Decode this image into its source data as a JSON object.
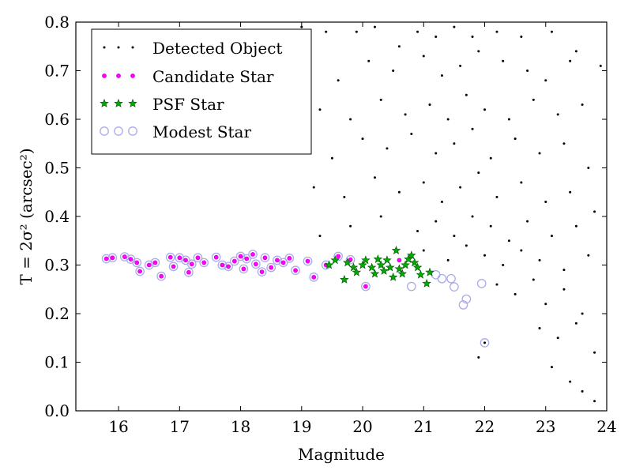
{
  "chart_data": {
    "type": "scatter",
    "xlabel": "Magnitude",
    "ylabel": "T = 2σ² (arcsec²)",
    "xlim": [
      15.3,
      24
    ],
    "ylim": [
      0,
      0.8
    ],
    "xticks": [
      "16",
      "17",
      "18",
      "19",
      "20",
      "21",
      "22",
      "23",
      "24"
    ],
    "yticks": [
      "0.0",
      "0.1",
      "0.2",
      "0.3",
      "0.4",
      "0.5",
      "0.6",
      "0.7",
      "0.8"
    ],
    "legend_placement": "top-left",
    "legend": [
      {
        "label": "Detected Object",
        "marker": "dot",
        "color": "#000000"
      },
      {
        "label": "Candidate Star",
        "marker": "small-circle",
        "color": "#ff00ff"
      },
      {
        "label": "PSF Star",
        "marker": "star",
        "color": "#00aa00"
      },
      {
        "label": "Modest Star",
        "marker": "hollow-circle",
        "color": "#aaaaee"
      }
    ],
    "series": [
      {
        "name": "Detected Object",
        "points": [
          [
            19.0,
            0.79
          ],
          [
            19.4,
            0.78
          ],
          [
            19.9,
            0.78
          ],
          [
            20.2,
            0.79
          ],
          [
            20.6,
            0.75
          ],
          [
            20.9,
            0.78
          ],
          [
            21.2,
            0.77
          ],
          [
            21.5,
            0.79
          ],
          [
            21.8,
            0.77
          ],
          [
            22.2,
            0.78
          ],
          [
            22.6,
            0.77
          ],
          [
            23.1,
            0.78
          ],
          [
            23.5,
            0.74
          ],
          [
            23.9,
            0.71
          ],
          [
            19.1,
            0.7
          ],
          [
            19.6,
            0.68
          ],
          [
            20.1,
            0.72
          ],
          [
            20.5,
            0.7
          ],
          [
            21.0,
            0.73
          ],
          [
            21.3,
            0.69
          ],
          [
            21.6,
            0.71
          ],
          [
            21.9,
            0.74
          ],
          [
            22.3,
            0.72
          ],
          [
            22.7,
            0.7
          ],
          [
            23.0,
            0.68
          ],
          [
            23.4,
            0.72
          ],
          [
            19.3,
            0.62
          ],
          [
            19.8,
            0.6
          ],
          [
            20.3,
            0.64
          ],
          [
            20.7,
            0.61
          ],
          [
            21.1,
            0.63
          ],
          [
            21.4,
            0.6
          ],
          [
            21.7,
            0.65
          ],
          [
            22.0,
            0.62
          ],
          [
            22.4,
            0.6
          ],
          [
            22.8,
            0.64
          ],
          [
            23.2,
            0.61
          ],
          [
            23.6,
            0.63
          ],
          [
            18.9,
            0.55
          ],
          [
            19.5,
            0.52
          ],
          [
            20.0,
            0.56
          ],
          [
            20.4,
            0.54
          ],
          [
            20.8,
            0.57
          ],
          [
            21.2,
            0.53
          ],
          [
            21.5,
            0.55
          ],
          [
            21.8,
            0.58
          ],
          [
            22.1,
            0.52
          ],
          [
            22.5,
            0.56
          ],
          [
            22.9,
            0.53
          ],
          [
            23.3,
            0.55
          ],
          [
            23.7,
            0.5
          ],
          [
            19.2,
            0.46
          ],
          [
            19.7,
            0.44
          ],
          [
            20.2,
            0.48
          ],
          [
            20.6,
            0.45
          ],
          [
            21.0,
            0.47
          ],
          [
            21.3,
            0.43
          ],
          [
            21.6,
            0.46
          ],
          [
            21.9,
            0.49
          ],
          [
            22.2,
            0.44
          ],
          [
            22.6,
            0.47
          ],
          [
            23.0,
            0.43
          ],
          [
            23.4,
            0.45
          ],
          [
            23.8,
            0.41
          ],
          [
            19.8,
            0.38
          ],
          [
            20.3,
            0.4
          ],
          [
            20.9,
            0.37
          ],
          [
            21.2,
            0.39
          ],
          [
            21.5,
            0.36
          ],
          [
            21.8,
            0.4
          ],
          [
            22.1,
            0.38
          ],
          [
            22.4,
            0.35
          ],
          [
            22.7,
            0.39
          ],
          [
            23.1,
            0.36
          ],
          [
            23.5,
            0.38
          ],
          [
            21.0,
            0.33
          ],
          [
            21.4,
            0.31
          ],
          [
            21.7,
            0.34
          ],
          [
            22.0,
            0.32
          ],
          [
            22.3,
            0.3
          ],
          [
            22.6,
            0.33
          ],
          [
            22.9,
            0.31
          ],
          [
            23.3,
            0.29
          ],
          [
            23.7,
            0.32
          ],
          [
            22.2,
            0.26
          ],
          [
            22.5,
            0.24
          ],
          [
            22.8,
            0.27
          ],
          [
            23.0,
            0.22
          ],
          [
            23.3,
            0.25
          ],
          [
            23.6,
            0.2
          ],
          [
            22.9,
            0.17
          ],
          [
            23.2,
            0.15
          ],
          [
            23.5,
            0.18
          ],
          [
            23.8,
            0.12
          ],
          [
            23.1,
            0.09
          ],
          [
            23.4,
            0.06
          ],
          [
            23.6,
            0.04
          ],
          [
            23.8,
            0.02
          ],
          [
            19.3,
            0.36
          ],
          [
            18.8,
            0.54
          ],
          [
            22.0,
            0.14
          ],
          [
            21.9,
            0.11
          ]
        ]
      },
      {
        "name": "Candidate Star",
        "points": [
          [
            15.8,
            0.313
          ],
          [
            15.9,
            0.315
          ],
          [
            16.1,
            0.317
          ],
          [
            16.2,
            0.312
          ],
          [
            16.3,
            0.305
          ],
          [
            16.35,
            0.287
          ],
          [
            16.5,
            0.3
          ],
          [
            16.6,
            0.305
          ],
          [
            16.7,
            0.277
          ],
          [
            16.85,
            0.316
          ],
          [
            16.9,
            0.297
          ],
          [
            17.0,
            0.315
          ],
          [
            17.1,
            0.31
          ],
          [
            17.15,
            0.285
          ],
          [
            17.2,
            0.302
          ],
          [
            17.3,
            0.315
          ],
          [
            17.4,
            0.305
          ],
          [
            17.6,
            0.316
          ],
          [
            17.7,
            0.3
          ],
          [
            17.8,
            0.297
          ],
          [
            17.9,
            0.308
          ],
          [
            18.0,
            0.318
          ],
          [
            18.05,
            0.292
          ],
          [
            18.1,
            0.313
          ],
          [
            18.2,
            0.322
          ],
          [
            18.25,
            0.302
          ],
          [
            18.35,
            0.286
          ],
          [
            18.4,
            0.315
          ],
          [
            18.5,
            0.295
          ],
          [
            18.6,
            0.31
          ],
          [
            18.7,
            0.305
          ],
          [
            18.8,
            0.314
          ],
          [
            18.9,
            0.289
          ],
          [
            19.1,
            0.308
          ],
          [
            19.2,
            0.275
          ],
          [
            19.4,
            0.3
          ],
          [
            19.6,
            0.318
          ],
          [
            19.8,
            0.311
          ],
          [
            20.05,
            0.256
          ],
          [
            20.6,
            0.31
          ]
        ]
      },
      {
        "name": "PSF Star",
        "points": [
          [
            19.45,
            0.3
          ],
          [
            19.55,
            0.31
          ],
          [
            19.7,
            0.27
          ],
          [
            19.75,
            0.305
          ],
          [
            19.85,
            0.295
          ],
          [
            19.9,
            0.285
          ],
          [
            20.0,
            0.3
          ],
          [
            20.05,
            0.31
          ],
          [
            20.15,
            0.295
          ],
          [
            20.2,
            0.282
          ],
          [
            20.25,
            0.312
          ],
          [
            20.3,
            0.3
          ],
          [
            20.35,
            0.288
          ],
          [
            20.4,
            0.31
          ],
          [
            20.45,
            0.295
          ],
          [
            20.5,
            0.275
          ],
          [
            20.55,
            0.33
          ],
          [
            20.6,
            0.292
          ],
          [
            20.65,
            0.282
          ],
          [
            20.7,
            0.3
          ],
          [
            20.75,
            0.312
          ],
          [
            20.8,
            0.32
          ],
          [
            20.85,
            0.305
          ],
          [
            20.9,
            0.295
          ],
          [
            20.95,
            0.28
          ],
          [
            21.05,
            0.262
          ],
          [
            21.1,
            0.285
          ]
        ]
      },
      {
        "name": "Modest Star",
        "points": [
          [
            15.8,
            0.313
          ],
          [
            15.9,
            0.315
          ],
          [
            16.1,
            0.317
          ],
          [
            16.2,
            0.312
          ],
          [
            16.3,
            0.305
          ],
          [
            16.35,
            0.287
          ],
          [
            16.5,
            0.3
          ],
          [
            16.6,
            0.305
          ],
          [
            16.7,
            0.277
          ],
          [
            16.85,
            0.316
          ],
          [
            16.9,
            0.297
          ],
          [
            17.0,
            0.315
          ],
          [
            17.1,
            0.31
          ],
          [
            17.15,
            0.285
          ],
          [
            17.2,
            0.302
          ],
          [
            17.3,
            0.315
          ],
          [
            17.4,
            0.305
          ],
          [
            17.6,
            0.316
          ],
          [
            17.7,
            0.3
          ],
          [
            17.8,
            0.297
          ],
          [
            17.9,
            0.308
          ],
          [
            18.0,
            0.318
          ],
          [
            18.05,
            0.292
          ],
          [
            18.1,
            0.313
          ],
          [
            18.2,
            0.322
          ],
          [
            18.25,
            0.302
          ],
          [
            18.35,
            0.286
          ],
          [
            18.4,
            0.315
          ],
          [
            18.5,
            0.295
          ],
          [
            18.6,
            0.31
          ],
          [
            18.7,
            0.305
          ],
          [
            18.8,
            0.314
          ],
          [
            18.9,
            0.289
          ],
          [
            19.1,
            0.308
          ],
          [
            19.2,
            0.275
          ],
          [
            19.4,
            0.3
          ],
          [
            19.6,
            0.318
          ],
          [
            19.8,
            0.311
          ],
          [
            20.05,
            0.256
          ],
          [
            20.8,
            0.256
          ],
          [
            21.2,
            0.28
          ],
          [
            21.3,
            0.272
          ],
          [
            21.45,
            0.272
          ],
          [
            21.5,
            0.255
          ],
          [
            21.7,
            0.23
          ],
          [
            21.65,
            0.218
          ],
          [
            21.95,
            0.262
          ],
          [
            22.0,
            0.14
          ]
        ]
      }
    ]
  }
}
